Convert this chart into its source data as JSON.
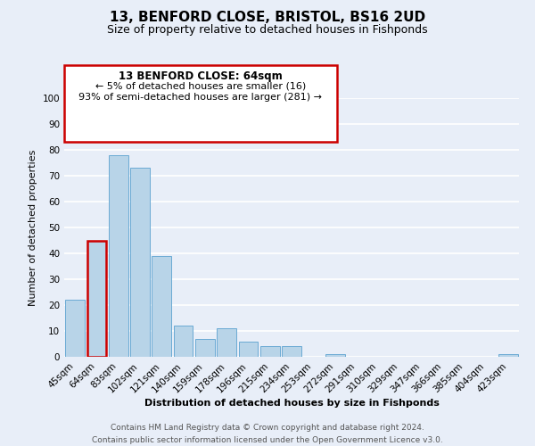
{
  "title": "13, BENFORD CLOSE, BRISTOL, BS16 2UD",
  "subtitle": "Size of property relative to detached houses in Fishponds",
  "xlabel": "Distribution of detached houses by size in Fishponds",
  "ylabel": "Number of detached properties",
  "footer_line1": "Contains HM Land Registry data © Crown copyright and database right 2024.",
  "footer_line2": "Contains public sector information licensed under the Open Government Licence v3.0.",
  "bar_labels": [
    "45sqm",
    "64sqm",
    "83sqm",
    "102sqm",
    "121sqm",
    "140sqm",
    "159sqm",
    "178sqm",
    "196sqm",
    "215sqm",
    "234sqm",
    "253sqm",
    "272sqm",
    "291sqm",
    "310sqm",
    "329sqm",
    "347sqm",
    "366sqm",
    "385sqm",
    "404sqm",
    "423sqm"
  ],
  "bar_values": [
    22,
    45,
    78,
    73,
    39,
    12,
    7,
    11,
    6,
    4,
    4,
    0,
    1,
    0,
    0,
    0,
    0,
    0,
    0,
    0,
    1
  ],
  "bar_color": "#b8d4e8",
  "bar_edge_color": "#6aaad4",
  "annotation_title": "13 BENFORD CLOSE: 64sqm",
  "annotation_line1": "← 5% of detached houses are smaller (16)",
  "annotation_line2": "93% of semi-detached houses are larger (281) →",
  "annotation_box_color": "#ffffff",
  "annotation_box_edge": "#cc0000",
  "highlight_bar_index": 1,
  "highlight_bar_color": "#cc0000",
  "ylim": [
    0,
    100
  ],
  "yticks": [
    0,
    10,
    20,
    30,
    40,
    50,
    60,
    70,
    80,
    90,
    100
  ],
  "background_color": "#e8eef8",
  "plot_background": "#e8eef8",
  "grid_color": "#ffffff",
  "title_fontsize": 11,
  "subtitle_fontsize": 9,
  "axis_label_fontsize": 8,
  "tick_fontsize": 7.5,
  "footer_fontsize": 6.5
}
